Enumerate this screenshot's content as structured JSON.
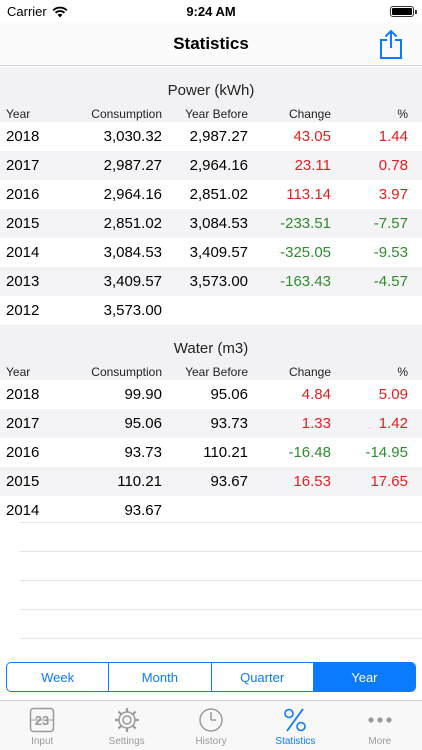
{
  "status_bar": {
    "carrier": "Carrier",
    "time": "9:24 AM"
  },
  "nav": {
    "title": "Statistics"
  },
  "columns": {
    "year": "Year",
    "consumption": "Consumption",
    "year_before": "Year Before",
    "change": "Change",
    "percent": "%"
  },
  "sections": [
    {
      "title": "Power (kWh)",
      "rows": [
        {
          "year": "2018",
          "consumption": "3,030.32",
          "year_before": "2,987.27",
          "change": "43.05",
          "percent": "1.44",
          "trend": "up"
        },
        {
          "year": "2017",
          "consumption": "2,987.27",
          "year_before": "2,964.16",
          "change": "23.11",
          "percent": "0.78",
          "trend": "up"
        },
        {
          "year": "2016",
          "consumption": "2,964.16",
          "year_before": "2,851.02",
          "change": "113.14",
          "percent": "3.97",
          "trend": "up"
        },
        {
          "year": "2015",
          "consumption": "2,851.02",
          "year_before": "3,084.53",
          "change": "-233.51",
          "percent": "-7.57",
          "trend": "down"
        },
        {
          "year": "2014",
          "consumption": "3,084.53",
          "year_before": "3,409.57",
          "change": "-325.05",
          "percent": "-9.53",
          "trend": "down"
        },
        {
          "year": "2013",
          "consumption": "3,409.57",
          "year_before": "3,573.00",
          "change": "-163.43",
          "percent": "-4.57",
          "trend": "down"
        },
        {
          "year": "2012",
          "consumption": "3,573.00",
          "year_before": "",
          "change": "",
          "percent": "",
          "trend": ""
        }
      ]
    },
    {
      "title": "Water (m3)",
      "rows": [
        {
          "year": "2018",
          "consumption": "99.90",
          "year_before": "95.06",
          "change": "4.84",
          "percent": "5.09",
          "trend": "up"
        },
        {
          "year": "2017",
          "consumption": "95.06",
          "year_before": "93.73",
          "change": "1.33",
          "percent": "1.42",
          "trend": "up"
        },
        {
          "year": "2016",
          "consumption": "93.73",
          "year_before": "110.21",
          "change": "-16.48",
          "percent": "-14.95",
          "trend": "down"
        },
        {
          "year": "2015",
          "consumption": "110.21",
          "year_before": "93.67",
          "change": "16.53",
          "percent": "17.65",
          "trend": "up"
        },
        {
          "year": "2014",
          "consumption": "93.67",
          "year_before": "",
          "change": "",
          "percent": "",
          "trend": ""
        }
      ]
    }
  ],
  "segments": {
    "items": [
      "Week",
      "Month",
      "Quarter",
      "Year"
    ],
    "selected": "Year"
  },
  "tabs": {
    "input": "Input",
    "settings": "Settings",
    "history": "History",
    "statistics": "Statistics",
    "more": "More",
    "icon_input_digits": "23",
    "selected": "Statistics"
  },
  "colors": {
    "accent": "#0a7aff",
    "increase": "#e01f1f",
    "decrease": "#2e8b2e"
  }
}
